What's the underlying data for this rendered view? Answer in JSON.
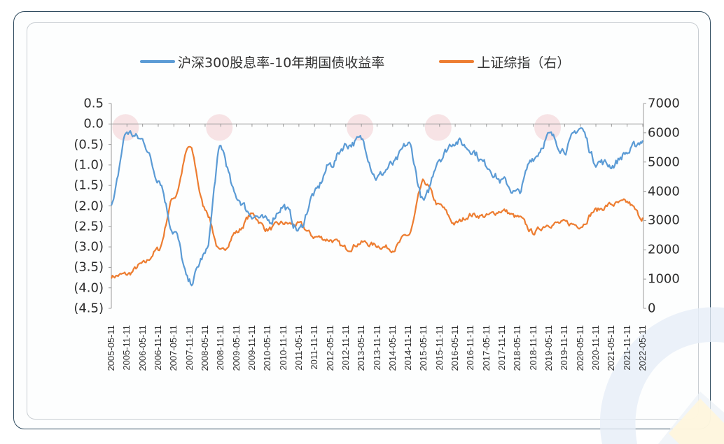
{
  "chart_data": {
    "type": "line",
    "title": "",
    "legend": [
      {
        "name": "沪深300股息率-10年期国债收益率",
        "color": "#5b9bd5",
        "axis": "left"
      },
      {
        "name": "上证综指（右）",
        "color": "#ed7d31",
        "axis": "right"
      }
    ],
    "legend_position": "top",
    "grid": false,
    "xlabel": "",
    "ylabel": "",
    "y_left": {
      "range": [
        -4.5,
        0.5
      ],
      "ticks": [
        "0.5",
        "0.0",
        "(0.5)",
        "(1.0)",
        "(1.5)",
        "(2.0)",
        "(2.5)",
        "(3.0)",
        "(3.5)",
        "(4.0)",
        "(4.5)"
      ],
      "tick_values": [
        0.5,
        0.0,
        -0.5,
        -1.0,
        -1.5,
        -2.0,
        -2.5,
        -3.0,
        -3.5,
        -4.0,
        -4.5
      ]
    },
    "y_right": {
      "range": [
        0,
        7000
      ],
      "ticks": [
        "7000",
        "6000",
        "5000",
        "4000",
        "3000",
        "2000",
        "1000",
        "0"
      ],
      "tick_values": [
        7000,
        6000,
        5000,
        4000,
        3000,
        2000,
        1000,
        0
      ]
    },
    "categories": [
      "2005-05-11",
      "2005-11-11",
      "2006-05-11",
      "2006-11-11",
      "2007-05-11",
      "2007-11-11",
      "2008-05-11",
      "2008-11-11",
      "2009-05-11",
      "2009-11-11",
      "2010-05-11",
      "2010-11-11",
      "2011-05-11",
      "2011-11-11",
      "2012-05-11",
      "2012-11-11",
      "2013-05-11",
      "2013-11-11",
      "2014-05-11",
      "2014-11-11",
      "2015-05-11",
      "2015-11-11",
      "2016-05-11",
      "2016-11-11",
      "2017-05-11",
      "2017-11-11",
      "2018-05-11",
      "2018-11-11",
      "2019-05-11",
      "2019-11-11",
      "2020-05-11",
      "2020-11-11",
      "2021-05-11",
      "2021-11-11",
      "2022-05-11"
    ],
    "series": [
      {
        "name": "沪深300股息率-10年期国债收益率",
        "axis": "left",
        "values": [
          -2.0,
          -0.2,
          -0.4,
          -1.3,
          -2.6,
          -3.9,
          -3.2,
          -0.6,
          -1.8,
          -2.2,
          -2.4,
          -2.0,
          -2.6,
          -1.7,
          -1.0,
          -0.5,
          -0.4,
          -1.3,
          -1.0,
          -0.5,
          -1.9,
          -0.8,
          -0.4,
          -0.6,
          -1.0,
          -1.4,
          -1.7,
          -0.8,
          -0.3,
          -0.6,
          -0.1,
          -0.9,
          -1.0,
          -0.7,
          -0.4
        ]
      },
      {
        "name": "上证综指（右）",
        "axis": "right",
        "values": [
          1100,
          1150,
          1500,
          2000,
          3800,
          5500,
          3400,
          1900,
          2600,
          3200,
          2700,
          2900,
          2850,
          2450,
          2350,
          2050,
          2250,
          2150,
          2050,
          2500,
          4300,
          3500,
          2900,
          3200,
          3150,
          3350,
          3100,
          2600,
          2900,
          2900,
          2850,
          3350,
          3550,
          3600,
          3100
        ]
      }
    ],
    "annotations": [
      {
        "type": "highlight-circle",
        "near": "2005-11-11",
        "color": "#f4d9dc"
      },
      {
        "type": "highlight-circle",
        "near": "2008-11-11",
        "color": "#f4d9dc"
      },
      {
        "type": "highlight-circle",
        "near": "2013-05-11",
        "color": "#f4d9dc"
      },
      {
        "type": "highlight-circle",
        "near": "2015-11-11",
        "color": "#f4d9dc"
      },
      {
        "type": "highlight-circle",
        "near": "2019-05-11",
        "color": "#f4d9dc"
      }
    ]
  },
  "colors": {
    "spread": "#5b9bd5",
    "index": "#ed7d31",
    "axis": "#9a9a9a",
    "highlight": "#f4d9dc"
  }
}
